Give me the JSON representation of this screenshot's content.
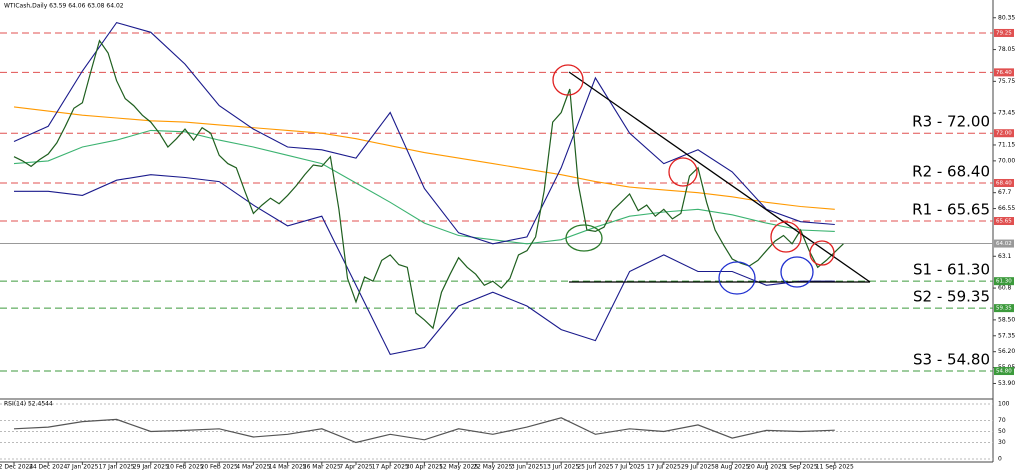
{
  "chart_data": [
    {
      "type": "line",
      "title": "WTICash,Daily  63.59 64.06 63.08 64.02",
      "color": "#1f5f1f",
      "categories": [
        "12 Dec 2024",
        null,
        null,
        null,
        "24 Dec 2024",
        null,
        null,
        null,
        "7 Jan 2025",
        null,
        null,
        null,
        "17 Jan 2025",
        null,
        null,
        null,
        "29 Jan 2025",
        null,
        null,
        null,
        "10 Feb 2025",
        null,
        null,
        null,
        "20 Feb 2025",
        null,
        null,
        null,
        "4 Mar 2025",
        null,
        null,
        null,
        "14 Mar 2025",
        null,
        null,
        null,
        "26 Mar 2025",
        null,
        null,
        null,
        "7 Apr 2025",
        null,
        null,
        null,
        "17 Apr 2025",
        null,
        null,
        null,
        "30 Apr 2025",
        null,
        null,
        null,
        "12 May 2025",
        null,
        null,
        null,
        "22 May 2025",
        null,
        null,
        null,
        "3 Jun 2025",
        null,
        null,
        null,
        "13 Jun 2025",
        null,
        null,
        null,
        "25 Jun 2025",
        null,
        null,
        null,
        "7 Jul 2025",
        null,
        null,
        null,
        "17 Jul 2025",
        null,
        null,
        null,
        "29 Jul 2025",
        null,
        null,
        null,
        "8 Aug 2025",
        null,
        null,
        null,
        "20 Aug 2025",
        null,
        null,
        null,
        "1 Sep 2025",
        null,
        null,
        null,
        "11 Sep 2025",
        null
      ],
      "values": [
        70.3,
        70.0,
        69.6,
        70.1,
        70.5,
        71.3,
        72.5,
        73.8,
        74.2,
        76.5,
        78.7,
        77.8,
        75.8,
        74.5,
        74.0,
        73.3,
        72.8,
        72.0,
        71.0,
        71.6,
        72.3,
        71.5,
        72.4,
        72.0,
        70.4,
        69.8,
        69.5,
        67.8,
        66.2,
        66.8,
        67.3,
        66.9,
        67.5,
        68.2,
        69.0,
        69.7,
        69.6,
        70.3,
        66.5,
        61.5,
        59.8,
        61.6,
        61.3,
        62.8,
        63.2,
        62.5,
        62.3,
        59.0,
        58.5,
        57.9,
        60.5,
        61.8,
        63.0,
        62.3,
        61.8,
        61.0,
        61.3,
        60.8,
        61.5,
        63.2,
        63.5,
        64.5,
        67.8,
        72.8,
        73.5,
        75.2,
        68.3,
        65.0,
        64.9,
        65.2,
        66.4,
        67.0,
        67.6,
        66.4,
        66.8,
        66.0,
        66.5,
        65.8,
        66.2,
        68.9,
        69.5,
        67.0,
        65.0,
        63.9,
        62.9,
        62.6,
        62.4,
        62.8,
        63.5,
        64.2,
        64.6,
        64.0,
        65.0,
        63.5,
        62.3,
        62.8,
        63.4,
        64.0
      ],
      "indicators": [
        {
          "color": "#ff9900",
          "values": [
            73.9,
            73.6,
            73.3,
            73.1,
            72.9,
            72.8,
            72.6,
            72.4,
            72.2,
            72.0,
            71.6,
            71.1,
            70.6,
            70.2,
            69.8,
            69.4,
            69.0,
            68.5,
            68.1,
            67.9,
            67.7,
            67.4,
            67.0,
            66.7,
            66.5
          ]
        },
        {
          "color": "#3cb371",
          "values": [
            69.8,
            70.0,
            71.0,
            71.5,
            72.2,
            72.1,
            71.5,
            71.0,
            70.4,
            69.8,
            68.4,
            67.0,
            65.5,
            64.6,
            64.3,
            64.0,
            64.3,
            65.2,
            66.0,
            66.3,
            66.5,
            66.1,
            65.5,
            65.0,
            64.9
          ]
        },
        {
          "color": "#1a1a8c",
          "values": [
            71.4,
            72.5,
            76.5,
            80.0,
            79.3,
            77.0,
            74.0,
            72.3,
            71.0,
            70.8,
            70.2,
            73.5,
            68.0,
            64.8,
            64.0,
            64.5,
            69.5,
            76.0,
            72.0,
            69.8,
            70.8,
            69.2,
            66.5,
            65.6,
            65.4
          ]
        },
        {
          "color": "#1a1a8c",
          "values": [
            67.8,
            67.8,
            67.5,
            68.6,
            69.0,
            68.8,
            68.5,
            66.8,
            65.3,
            66.0,
            61.0,
            56.0,
            56.5,
            59.5,
            60.5,
            59.5,
            57.8,
            57.0,
            62.0,
            63.2,
            62.0,
            62.0,
            61.0,
            61.3,
            61.3
          ]
        }
      ],
      "levels": [
        {
          "value": 79.25,
          "tag": "79.25",
          "color": "#e05050"
        },
        {
          "value": 76.4,
          "tag": "76.40",
          "color": "#e05050"
        },
        {
          "value": 72,
          "tag": "72.00",
          "label": "R3 - 72.00",
          "color": "#e05050",
          "text_color": "#b01010"
        },
        {
          "value": 68.4,
          "tag": "68.40",
          "label": "R2 - 68.40",
          "color": "#e05050",
          "text_color": "#b01010"
        },
        {
          "value": 65.65,
          "tag": "65.65",
          "label": "R1 - 65.65",
          "color": "#e05050",
          "text_color": "#b01010"
        },
        {
          "value": 64.02,
          "tag": "64.02",
          "color": "#999999"
        },
        {
          "value": 61.3,
          "tag": "61.30",
          "label": "S1 - 61.30",
          "color": "#3c9a3c",
          "text_color": "#1a6e1a"
        },
        {
          "value": 59.35,
          "tag": "59.35",
          "label": "S2 - 59.35",
          "color": "#3c9a3c",
          "text_color": "#1a6e1a"
        },
        {
          "value": 54.8,
          "tag": "54.80",
          "label": "S3 - 54.80",
          "color": "#3c9a3c",
          "text_color": "#1a6e1a"
        }
      ],
      "ylim": [
        52.85,
        81.2
      ],
      "yticks": [
        80.35,
        {
          "value": 78.05,
          "label": "78.05"
        },
        75.75,
        73.45,
        71.15,
        {
          "value": 70,
          "label": "70.00"
        },
        67.7,
        66.55,
        63.1,
        60.8,
        {
          "value": 58.5,
          "label": "58.50"
        },
        57.35,
        {
          "value": 56.2,
          "label": "56.20"
        },
        55.05,
        {
          "value": 53.9,
          "label": "53.90"
        }
      ]
    },
    {
      "type": "line",
      "title": "RSI(14) 52.4544",
      "color": "#555555",
      "values": [
        55,
        58,
        68,
        72,
        50,
        52,
        55,
        40,
        45,
        55,
        30,
        45,
        35,
        55,
        45,
        58,
        75,
        45,
        55,
        50,
        62,
        38,
        52,
        50,
        52.4544
      ],
      "ylim": [
        0,
        100
      ],
      "yticks": [
        100,
        70,
        50,
        30,
        0
      ]
    }
  ]
}
